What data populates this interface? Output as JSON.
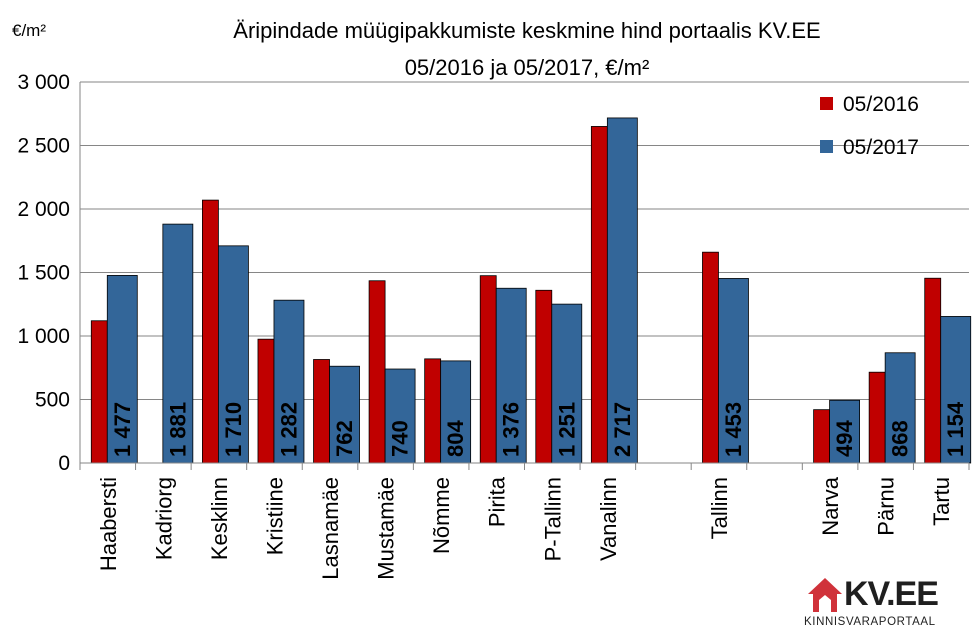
{
  "colors": {
    "series_2016": "#C00000",
    "series_2017": "#336699",
    "logo_accent": "#D0323A",
    "grid": "#868686"
  },
  "chart_data": {
    "type": "bar",
    "title": "Äripindade müügipakkumiste keskmine hind portaalis KV.EE",
    "subtitle": "05/2016 ja 05/2017, €/m²",
    "ylabel": "€/m²",
    "xlabel": "",
    "ylim": [
      0,
      3000
    ],
    "yticks": [
      0,
      500,
      1000,
      1500,
      2000,
      2500,
      3000
    ],
    "ytick_labels": [
      "0",
      "500",
      "1 000",
      "1 500",
      "2 000",
      "2 500",
      "3 000"
    ],
    "grid": true,
    "legend_position": "top-right",
    "categories": [
      "Haabersti",
      "Kadriorg",
      "Kesklinn",
      "Kristiine",
      "Lasnamäe",
      "Mustamäe",
      "Nõmme",
      "Pirita",
      "P-Tallinn",
      "Vanalinn",
      "",
      "Tallinn",
      "",
      "Narva",
      "Pärnu",
      "Tartu"
    ],
    "series": [
      {
        "name": "05/2016",
        "values": [
          1120,
          null,
          2070,
          975,
          815,
          1435,
          820,
          1475,
          1360,
          2650,
          null,
          1660,
          null,
          420,
          715,
          1455
        ]
      },
      {
        "name": "05/2017",
        "values": [
          1477,
          1881,
          1710,
          1282,
          762,
          740,
          804,
          1376,
          1251,
          2717,
          null,
          1453,
          null,
          494,
          868,
          1154
        ]
      }
    ],
    "data_labels_2017": [
      "1 477",
      "1 881",
      "1 710",
      "1 282",
      "762",
      "740",
      "804",
      "1 376",
      "1 251",
      "2 717",
      "",
      "1 453",
      "",
      "494",
      "868",
      "1 154"
    ]
  },
  "logo": {
    "name": "KV.EE",
    "tagline": "KINNISVARAPORTAAL"
  }
}
